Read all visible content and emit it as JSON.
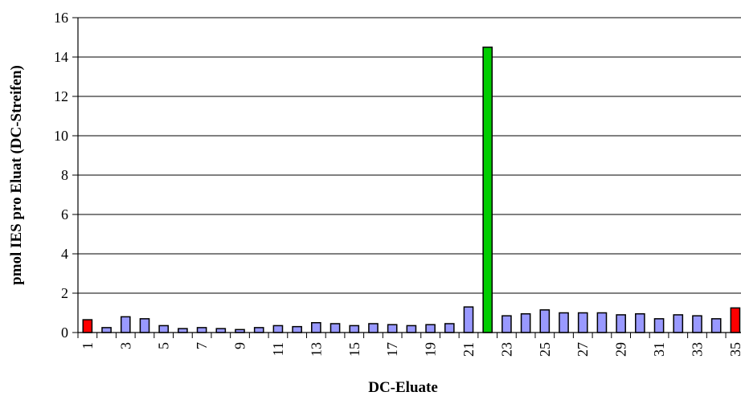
{
  "chart_data": {
    "type": "bar",
    "xlabel": "DC-Eluate",
    "ylabel": "pmol IES pro Eluat (DC-Streifen)",
    "ylim": [
      0,
      16
    ],
    "yticks": [
      0,
      2,
      4,
      6,
      8,
      10,
      12,
      14,
      16
    ],
    "grid": true,
    "categories": [
      "1",
      "2",
      "3",
      "4",
      "5",
      "6",
      "7",
      "8",
      "9",
      "10",
      "11",
      "12",
      "13",
      "14",
      "15",
      "16",
      "17",
      "18",
      "19",
      "20",
      "21",
      "22",
      "23",
      "24",
      "25",
      "26",
      "27",
      "28",
      "29",
      "30",
      "31",
      "32",
      "33",
      "34",
      "35"
    ],
    "x_tick_labels": [
      "1",
      "3",
      "5",
      "7",
      "9",
      "11",
      "13",
      "15",
      "17",
      "19",
      "21",
      "23",
      "25",
      "27",
      "29",
      "31",
      "33",
      "35"
    ],
    "values": [
      0.65,
      0.25,
      0.8,
      0.7,
      0.35,
      0.2,
      0.25,
      0.2,
      0.15,
      0.25,
      0.35,
      0.3,
      0.5,
      0.45,
      0.35,
      0.45,
      0.4,
      0.35,
      0.4,
      0.45,
      1.3,
      14.5,
      0.85,
      0.95,
      1.15,
      1.0,
      1.0,
      1.0,
      0.9,
      0.95,
      0.7,
      0.9,
      0.85,
      0.7,
      1.25
    ],
    "bar_colors": [
      "#ff0000",
      "#9999ff",
      "#9999ff",
      "#9999ff",
      "#9999ff",
      "#9999ff",
      "#9999ff",
      "#9999ff",
      "#9999ff",
      "#9999ff",
      "#9999ff",
      "#9999ff",
      "#9999ff",
      "#9999ff",
      "#9999ff",
      "#9999ff",
      "#9999ff",
      "#9999ff",
      "#9999ff",
      "#9999ff",
      "#9999ff",
      "#00cc00",
      "#9999ff",
      "#9999ff",
      "#9999ff",
      "#9999ff",
      "#9999ff",
      "#9999ff",
      "#9999ff",
      "#9999ff",
      "#9999ff",
      "#9999ff",
      "#9999ff",
      "#9999ff",
      "#ff0000"
    ]
  }
}
